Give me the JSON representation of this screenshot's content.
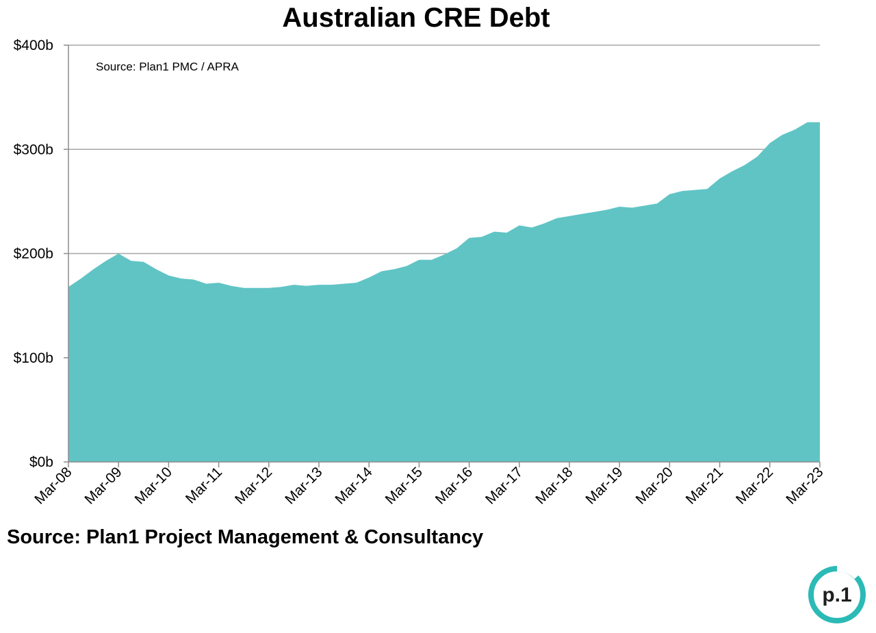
{
  "footer": {
    "source_text": "Source: Plan1 Project Management & Consultancy"
  },
  "logo": {
    "text": "p.1",
    "ring_color": "#2bbab5",
    "text_color": "#1f1f1f"
  },
  "colors": {
    "area_fill": "#60c4c5",
    "gridline": "#a6a6a6",
    "axis": "#8c8c8c"
  },
  "chart_data": {
    "type": "area",
    "title": "Australian CRE Debt",
    "annotation": "Source: Plan1 PMC / APRA",
    "xlabel": "",
    "ylabel": "",
    "ylim": [
      0,
      400
    ],
    "y_unit": "$b",
    "y_ticks": [
      0,
      100,
      200,
      300,
      400
    ],
    "y_tick_labels": [
      "$0b",
      "$100b",
      "$200b",
      "$300b",
      "$400b"
    ],
    "x_tick_labels": [
      "Mar-08",
      "Mar-09",
      "Mar-10",
      "Mar-11",
      "Mar-12",
      "Mar-13",
      "Mar-14",
      "Mar-15",
      "Mar-16",
      "Mar-17",
      "Mar-18",
      "Mar-19",
      "Mar-20",
      "Mar-21",
      "Mar-22",
      "Mar-23"
    ],
    "grid": true,
    "legend": "none",
    "series": [
      {
        "x": [
          "Mar-08",
          "Jun-08",
          "Sep-08",
          "Dec-08",
          "Mar-09",
          "Jun-09",
          "Sep-09",
          "Dec-09",
          "Mar-10",
          "Jun-10",
          "Sep-10",
          "Dec-10",
          "Mar-11",
          "Jun-11",
          "Sep-11",
          "Dec-11",
          "Mar-12",
          "Jun-12",
          "Sep-12",
          "Dec-12",
          "Mar-13",
          "Jun-13",
          "Sep-13",
          "Dec-13",
          "Mar-14",
          "Jun-14",
          "Sep-14",
          "Dec-14",
          "Mar-15",
          "Jun-15",
          "Sep-15",
          "Dec-15",
          "Mar-16",
          "Jun-16",
          "Sep-16",
          "Dec-16",
          "Mar-17",
          "Jun-17",
          "Sep-17",
          "Dec-17",
          "Mar-18",
          "Jun-18",
          "Sep-18",
          "Dec-18",
          "Mar-19",
          "Jun-19",
          "Sep-19",
          "Dec-19",
          "Mar-20",
          "Jun-20",
          "Sep-20",
          "Dec-20",
          "Mar-21",
          "Jun-21",
          "Sep-21",
          "Dec-21",
          "Mar-22",
          "Jun-22",
          "Sep-22",
          "Dec-22",
          "Mar-23"
        ],
        "values": [
          168,
          176,
          185,
          193,
          200,
          193,
          192,
          185,
          179,
          176,
          175,
          171,
          172,
          169,
          167,
          167,
          167,
          168,
          170,
          169,
          170,
          170,
          171,
          172,
          177,
          183,
          185,
          188,
          194,
          194,
          199,
          205,
          215,
          216,
          221,
          220,
          227,
          225,
          229,
          234,
          236,
          238,
          240,
          242,
          245,
          244,
          246,
          248,
          257,
          260,
          261,
          262,
          272,
          279,
          285,
          293,
          306,
          314,
          319,
          326,
          326
        ]
      }
    ]
  }
}
